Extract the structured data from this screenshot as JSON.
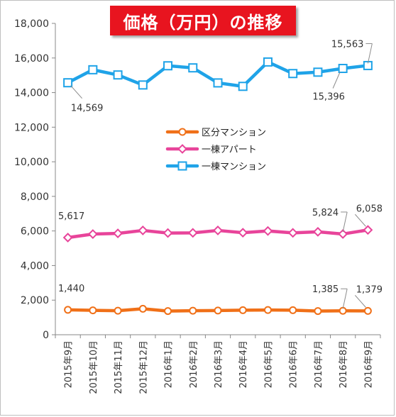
{
  "title": "価格（万円）の推移",
  "chart_data": {
    "type": "line",
    "title": "価格（万円）の推移",
    "xlabel": "",
    "ylabel": "",
    "ylim": [
      0,
      18000
    ],
    "yticks": [
      0,
      2000,
      4000,
      6000,
      8000,
      10000,
      12000,
      14000,
      16000,
      18000
    ],
    "ytick_labels": [
      "0",
      "2,000",
      "4,000",
      "6,000",
      "8,000",
      "10,000",
      "12,000",
      "14,000",
      "16,000",
      "18,000"
    ],
    "grid": false,
    "legend_placement": "center",
    "categories": [
      "2015年9月",
      "2015年10月",
      "2015年11月",
      "2015年12月",
      "2016年1月",
      "2016年2月",
      "2016年3月",
      "2016年4月",
      "2016年5月",
      "2016年6月",
      "2016年7月",
      "2016年8月",
      "2016年9月"
    ],
    "series": [
      {
        "name": "区分マンション",
        "color": "#f07018",
        "marker": "circle",
        "values": [
          1440,
          1410,
          1390,
          1500,
          1370,
          1390,
          1400,
          1420,
          1430,
          1420,
          1370,
          1385,
          1379
        ]
      },
      {
        "name": "一棟アパート",
        "color": "#e8449a",
        "marker": "diamond",
        "values": [
          5617,
          5820,
          5860,
          6030,
          5880,
          5890,
          6030,
          5900,
          6000,
          5890,
          5950,
          5824,
          6058
        ]
      },
      {
        "name": "一棟マンション",
        "color": "#1fa3e8",
        "marker": "square",
        "values": [
          14569,
          15320,
          15020,
          14440,
          15550,
          15430,
          14560,
          14360,
          15770,
          15100,
          15180,
          15396,
          15563
        ]
      }
    ],
    "annotations": [
      {
        "series": 2,
        "index": 0,
        "text": "14,569",
        "pos": "below-right"
      },
      {
        "series": 2,
        "index": 11,
        "text": "15,396",
        "pos": "below-left"
      },
      {
        "series": 2,
        "index": 12,
        "text": "15,563",
        "pos": "above-left"
      },
      {
        "series": 1,
        "index": 0,
        "text": "5,617",
        "pos": "above"
      },
      {
        "series": 1,
        "index": 11,
        "text": "5,824",
        "pos": "above-left"
      },
      {
        "series": 1,
        "index": 12,
        "text": "6,058",
        "pos": "above-left2"
      },
      {
        "series": 0,
        "index": 0,
        "text": "1,440",
        "pos": "above"
      },
      {
        "series": 0,
        "index": 11,
        "text": "1,385",
        "pos": "above-left"
      },
      {
        "series": 0,
        "index": 12,
        "text": "1,379",
        "pos": "above-left2"
      }
    ]
  }
}
